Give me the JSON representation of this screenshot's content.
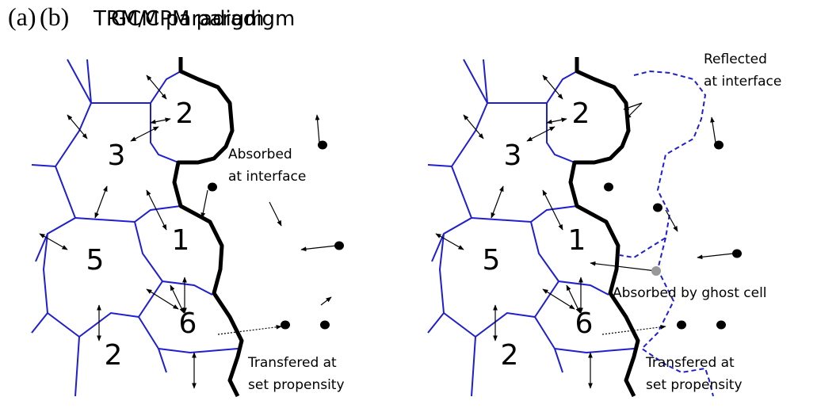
{
  "panels": [
    {
      "label": "(a)",
      "title": "TRM/CPM paradigm",
      "cell_labels": [
        "2",
        "3",
        "1",
        "5",
        "6",
        "2"
      ],
      "annotations": [
        [
          "Absorbed",
          "at interface"
        ],
        [
          "Transfered at",
          "set propensity"
        ]
      ]
    },
    {
      "label": "(b)",
      "title": "GCM paradigm",
      "cell_labels": [
        "2",
        "3",
        "1",
        "5",
        "6",
        "2"
      ],
      "annotations": [
        [
          "Reflected",
          "at interface"
        ],
        [
          "Absorbed by ghost cell"
        ],
        [
          "Transfered at",
          "set propensity"
        ]
      ]
    }
  ]
}
